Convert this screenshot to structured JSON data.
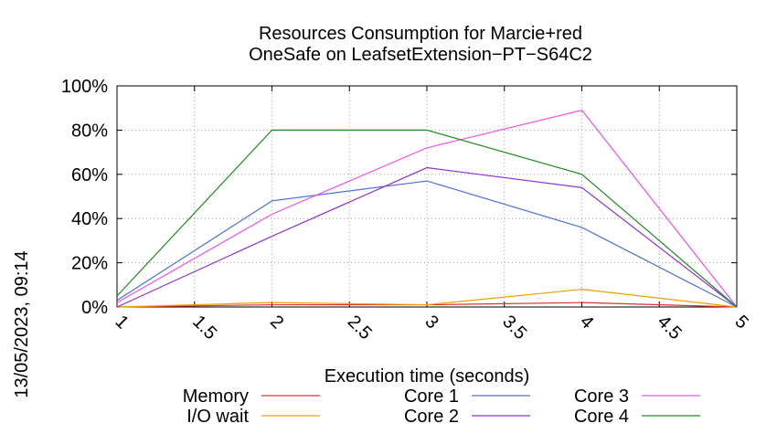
{
  "chart_data": {
    "type": "line",
    "title": [
      "Resources Consumption for Marcie+red",
      "OneSafe on LeafsetExtension−PT−S64C2"
    ],
    "xlabel": "Execution time (seconds)",
    "ylabel": "",
    "side_label": "13/05/2023, 09:14",
    "x": [
      1,
      2,
      3,
      4,
      5
    ],
    "xlim": [
      1,
      5
    ],
    "ylim": [
      0,
      100
    ],
    "xticks": [
      1,
      1.5,
      2,
      2.5,
      3,
      3.5,
      4,
      4.5,
      5
    ],
    "xtick_labels": [
      "1",
      "1.5",
      "2",
      "2.5",
      "3",
      "3.5",
      "4",
      "4.5",
      "5"
    ],
    "yticks": [
      0,
      20,
      40,
      60,
      80,
      100
    ],
    "ytick_labels": [
      "0%",
      "20%",
      "40%",
      "60%",
      "80%",
      "100%"
    ],
    "grid": true,
    "legend_position": "bottom",
    "series": [
      {
        "name": "Memory",
        "color": "#e03030",
        "values": [
          0,
          1,
          1,
          2,
          0
        ]
      },
      {
        "name": "I/O wait",
        "color": "#f0a000",
        "values": [
          0,
          2,
          1,
          8,
          0
        ]
      },
      {
        "name": "Core 1",
        "color": "#4a70d8",
        "values": [
          3,
          48,
          57,
          36,
          0
        ]
      },
      {
        "name": "Core 2",
        "color": "#9030d0",
        "values": [
          0,
          32,
          63,
          54,
          0
        ]
      },
      {
        "name": "Core 3",
        "color": "#f050f0",
        "values": [
          2,
          42,
          72,
          89,
          0
        ]
      },
      {
        "name": "Core 4",
        "color": "#208a20",
        "values": [
          5,
          80,
          80,
          60,
          0
        ]
      }
    ]
  }
}
